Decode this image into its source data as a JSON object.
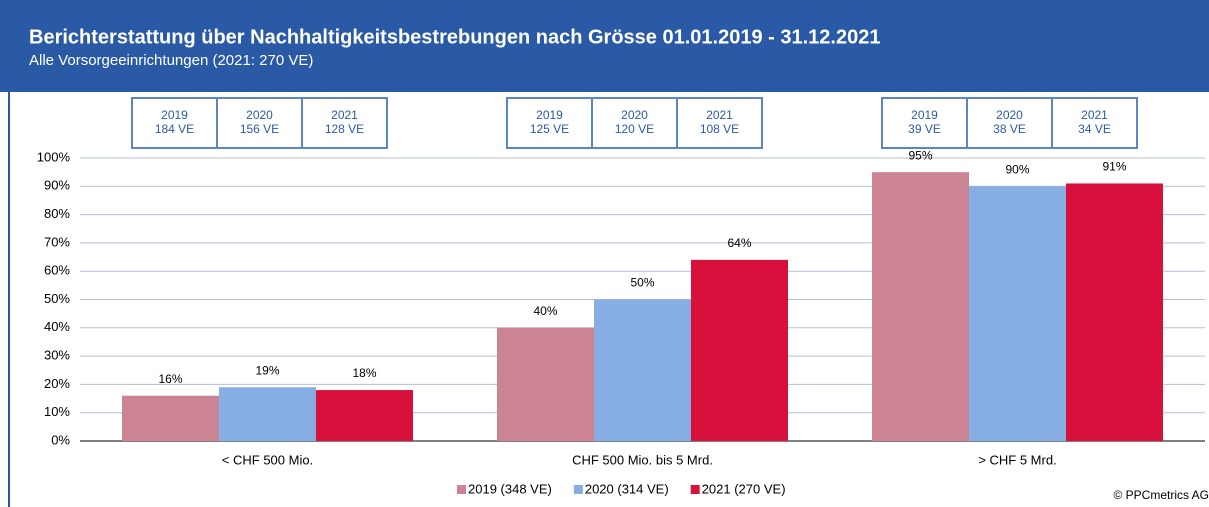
{
  "chart_data": {
    "type": "bar",
    "title": "Berichterstattung über Nachhaltigkeitsbestrebungen nach Grösse 01.01.2019 - 31.12.2021",
    "subtitle": "Alle Vorsorgeeinrichtungen (2021: 270 VE)",
    "categories": [
      "< CHF 500 Mio.",
      "CHF 500 Mio. bis 5 Mrd.",
      "> CHF 5 Mrd."
    ],
    "series": [
      {
        "name": "2019 (348 VE)",
        "color": "#cc8393",
        "values": [
          16,
          40,
          95
        ],
        "value_labels": [
          "16%",
          "40%",
          "95%"
        ]
      },
      {
        "name": "2020 (314 VE)",
        "color": "#86aee3",
        "values": [
          19,
          50,
          90
        ],
        "value_labels": [
          "19%",
          "50%",
          "90%"
        ]
      },
      {
        "name": "2021 (270 VE)",
        "color": "#d7103c",
        "values": [
          18,
          64,
          91
        ],
        "value_labels": [
          "18%",
          "64%",
          "91%"
        ]
      }
    ],
    "group_boxes": [
      [
        {
          "year": "2019",
          "count": "184 VE"
        },
        {
          "year": "2020",
          "count": "156 VE"
        },
        {
          "year": "2021",
          "count": "128 VE"
        }
      ],
      [
        {
          "year": "2019",
          "count": "125 VE"
        },
        {
          "year": "2020",
          "count": "120 VE"
        },
        {
          "year": "2021",
          "count": "108 VE"
        }
      ],
      [
        {
          "year": "2019",
          "count": "39 VE"
        },
        {
          "year": "2020",
          "count": "38 VE"
        },
        {
          "year": "2021",
          "count": "34 VE"
        }
      ]
    ],
    "ylim": [
      0,
      100
    ],
    "yticks": [
      {
        "value": 0,
        "label": "0%"
      },
      {
        "value": 10,
        "label": "10%"
      },
      {
        "value": 20,
        "label": "20%"
      },
      {
        "value": 30,
        "label": "30%"
      },
      {
        "value": 40,
        "label": "40%"
      },
      {
        "value": 50,
        "label": "50%"
      },
      {
        "value": 60,
        "label": "60%"
      },
      {
        "value": 70,
        "label": "70%"
      },
      {
        "value": 80,
        "label": "80%"
      },
      {
        "value": 90,
        "label": "90%"
      },
      {
        "value": 100,
        "label": "100%"
      }
    ],
    "grid": true,
    "legend": "bottom",
    "copyright": "© PPCmetrics AG"
  }
}
